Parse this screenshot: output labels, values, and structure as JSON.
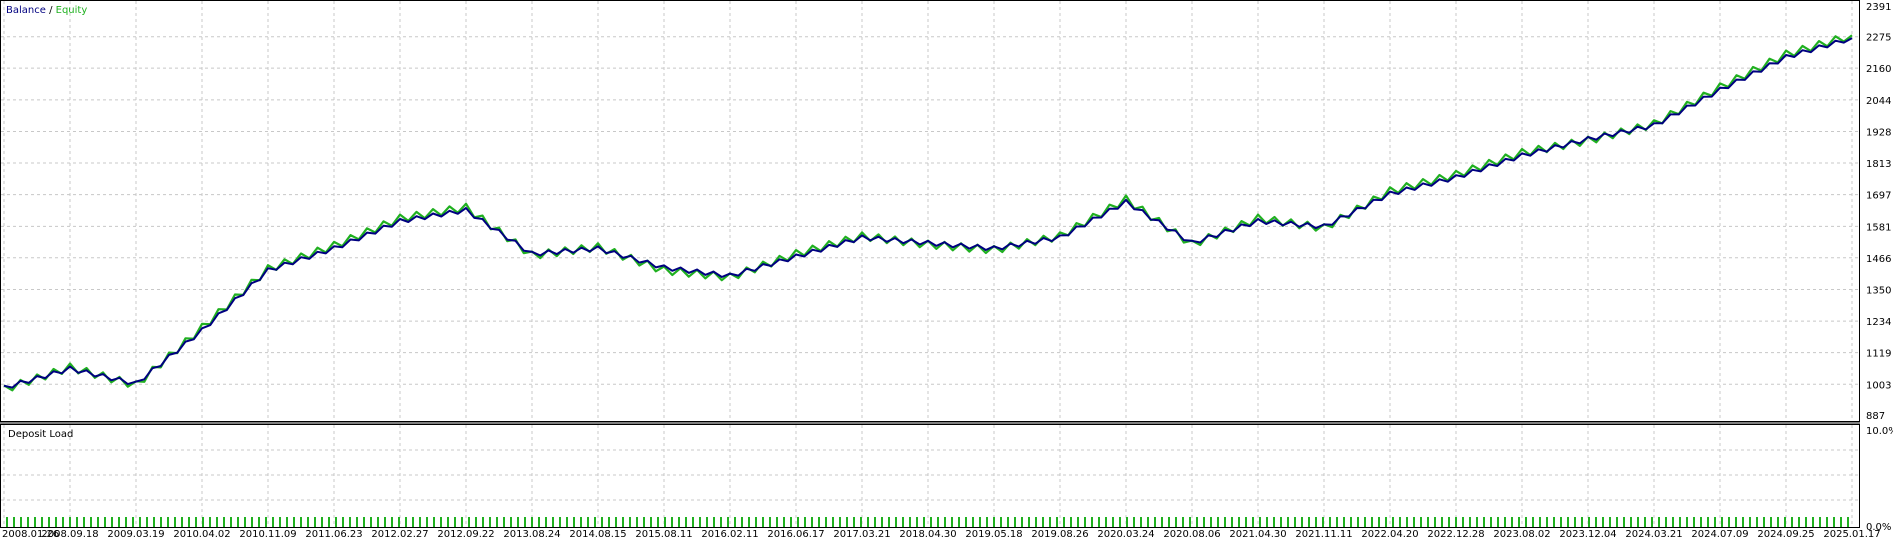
{
  "legend": {
    "balance_label": "Balance",
    "separator": " / ",
    "equity_label": "Equity",
    "balance_color": "#000080",
    "equity_color": "#20b020"
  },
  "deposit_panel": {
    "title": "Deposit Load",
    "y_top_label": "10.0%",
    "y_bottom_label": "0.0%",
    "bar_color": "#20b020"
  },
  "chart_data": {
    "type": "line",
    "ylim": [
      887,
      2391
    ],
    "y_ticks": [
      "2391",
      "2275",
      "2160",
      "2044",
      "1928",
      "1813",
      "1697",
      "1581",
      "1466",
      "1350",
      "1234",
      "1119",
      "1003",
      "887"
    ],
    "x_ticks": [
      "2008.01.26",
      "2008.09.18",
      "2009.03.19",
      "2010.04.02",
      "2010.11.09",
      "2011.06.23",
      "2012.02.27",
      "2012.09.22",
      "2013.08.24",
      "2014.08.15",
      "2015.08.11",
      "2016.02.11",
      "2016.06.17",
      "2017.03.21",
      "2018.04.30",
      "2019.05.18",
      "2019.08.26",
      "2020.03.24",
      "2020.08.06",
      "2021.04.30",
      "2021.11.11",
      "2022.04.20",
      "2022.12.28",
      "2023.08.02",
      "2023.12.04",
      "2024.03.21",
      "2024.07.09",
      "2024.09.25",
      "2025.01.17"
    ],
    "grid": true,
    "series": [
      {
        "name": "Balance",
        "color": "#000080",
        "x": [
          "2008.01.26",
          "2008.09.18",
          "2009.03.19",
          "2010.04.02",
          "2010.11.09",
          "2011.06.23",
          "2012.02.27",
          "2012.09.22",
          "2013.08.24",
          "2014.08.15",
          "2015.08.11",
          "2016.02.11",
          "2016.06.17",
          "2017.03.21",
          "2018.04.30",
          "2019.05.18",
          "2019.08.26",
          "2020.03.24",
          "2020.08.06",
          "2021.04.30",
          "2021.11.11",
          "2022.04.20",
          "2022.12.28",
          "2023.08.02",
          "2023.12.04",
          "2024.03.21",
          "2024.07.09",
          "2024.09.25",
          "2025.01.17"
        ],
        "values": [
          990,
          1060,
          1005,
          1200,
          1420,
          1500,
          1600,
          1640,
          1480,
          1500,
          1430,
          1400,
          1470,
          1540,
          1520,
          1500,
          1540,
          1670,
          1520,
          1600,
          1580,
          1700,
          1760,
          1840,
          1900,
          1950,
          2080,
          2200,
          2270
        ]
      },
      {
        "name": "Equity",
        "color": "#20b020",
        "x": [
          "2008.01.26",
          "2008.09.18",
          "2009.03.19",
          "2010.04.02",
          "2010.11.09",
          "2011.06.23",
          "2012.02.27",
          "2012.09.22",
          "2013.08.24",
          "2014.08.15",
          "2015.08.11",
          "2016.02.11",
          "2016.06.17",
          "2017.03.21",
          "2018.04.30",
          "2019.05.18",
          "2019.08.26",
          "2020.03.24",
          "2020.08.06",
          "2021.04.30",
          "2021.11.11",
          "2022.04.20",
          "2022.12.28",
          "2023.08.02",
          "2023.12.04",
          "2024.03.21",
          "2024.07.09",
          "2024.09.25",
          "2025.01.17"
        ],
        "values": [
          985,
          1065,
          1000,
          1210,
          1425,
          1510,
          1610,
          1650,
          1475,
          1505,
          1420,
          1395,
          1480,
          1545,
          1515,
          1495,
          1545,
          1680,
          1515,
          1610,
          1575,
          1710,
          1770,
          1850,
          1895,
          1955,
          2090,
          2210,
          2280
        ]
      }
    ]
  }
}
